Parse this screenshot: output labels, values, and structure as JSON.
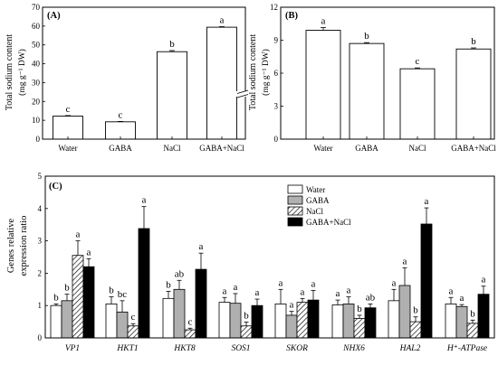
{
  "chart_data": [
    {
      "panel": "(A)",
      "type": "bar",
      "categories": [
        "Water",
        "GABA",
        "NaCl",
        "GABA+NaCl"
      ],
      "values": [
        12.2,
        9.2,
        46.4,
        59.4
      ],
      "errors": [
        0.3,
        0.2,
        0.6,
        0.3
      ],
      "letters": [
        "c",
        "c",
        "b",
        "a"
      ],
      "ylabel_line1": "Total sodium content",
      "ylabel_line2": "(mg g⁻¹ DW)",
      "yticks": [
        "0",
        "10",
        "20",
        "30",
        "40",
        "50",
        "60",
        "70"
      ],
      "ylim": [
        0,
        70
      ],
      "axis_break": true,
      "fill": "#ffffff",
      "grid": false
    },
    {
      "panel": "(B)",
      "type": "bar",
      "categories": [
        "Water",
        "GABA",
        "NaCl",
        "GABA+NaCl"
      ],
      "values": [
        9.9,
        8.7,
        6.4,
        8.2
      ],
      "errors": [
        0.25,
        0.08,
        0.08,
        0.1
      ],
      "letters": [
        "a",
        "b",
        "c",
        "b"
      ],
      "ylabel_line1": "Total sodium content",
      "ylabel_line2": "(mg g⁻¹ DW)",
      "yticks": [
        "0",
        "3",
        "6",
        "9",
        "12"
      ],
      "ylim": [
        0,
        12
      ],
      "fill": "#ffffff",
      "grid": false
    },
    {
      "panel": "(C)",
      "type": "bar",
      "categories": [
        "VP1",
        "HKT1",
        "HKT8",
        "SOS1",
        "SKOR",
        "NHX6",
        "HAL2",
        "H⁺-ATPase"
      ],
      "ylabel_line1": "Genes relative",
      "ylabel_line2": "expression ratio",
      "yticks": [
        "0",
        "1",
        "2",
        "3",
        "4",
        "5"
      ],
      "ylim": [
        0,
        5
      ],
      "legend_position": "top-center",
      "grid": false,
      "series": [
        {
          "name": "Water",
          "fill": "#ffffff",
          "values": [
            1.0,
            1.05,
            1.22,
            1.1,
            1.05,
            1.02,
            1.15,
            1.05
          ],
          "errors": [
            0.05,
            0.22,
            0.22,
            0.15,
            0.45,
            0.15,
            0.35,
            0.2
          ],
          "letters": [
            "b",
            "b",
            "b",
            "a",
            "a",
            "a",
            "a",
            "a"
          ]
        },
        {
          "name": "GABA",
          "fill": "#b0b0b0",
          "values": [
            1.15,
            0.8,
            1.5,
            1.07,
            0.7,
            1.05,
            1.62,
            0.97
          ],
          "errors": [
            0.2,
            0.35,
            0.28,
            0.3,
            0.12,
            0.22,
            0.55,
            0.06
          ],
          "letters": [
            "b",
            "bc",
            "ab",
            "a",
            "a",
            "a",
            "a",
            "a"
          ]
        },
        {
          "name": "NaCl",
          "fill": "hatch",
          "values": [
            2.55,
            0.37,
            0.25,
            0.37,
            1.1,
            0.6,
            0.5,
            0.45
          ],
          "errors": [
            0.45,
            0.07,
            0.05,
            0.12,
            0.12,
            0.1,
            0.15,
            0.1
          ],
          "letters": [
            "a",
            "c",
            "c",
            "b",
            "a",
            "b",
            "b",
            "b"
          ]
        },
        {
          "name": "GABA+NaCl",
          "fill": "#000000",
          "values": [
            2.2,
            3.38,
            2.12,
            1.0,
            1.17,
            0.93,
            3.52,
            1.35
          ],
          "errors": [
            0.25,
            0.68,
            0.5,
            0.2,
            0.3,
            0.12,
            0.5,
            0.25
          ],
          "letters": [
            "a",
            "a",
            "a",
            "a",
            "a",
            "ab",
            "a",
            "a"
          ]
        }
      ]
    }
  ]
}
